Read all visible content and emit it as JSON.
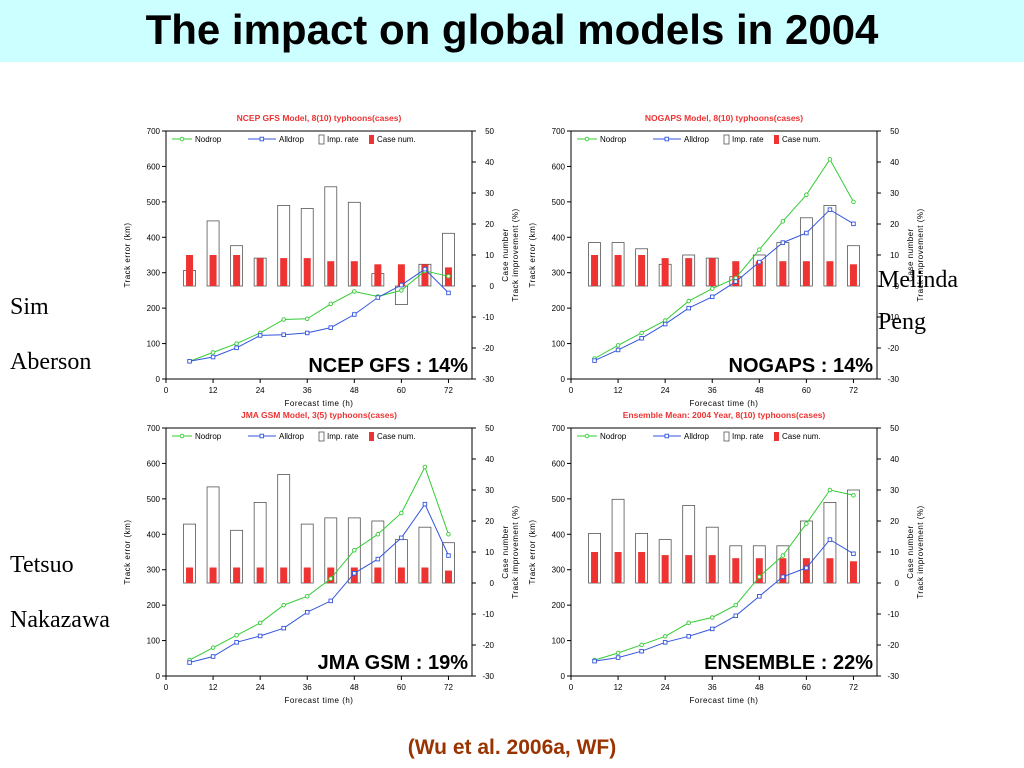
{
  "slide": {
    "title": "The impact on global models in 2004",
    "citation": "(Wu et al. 2006a, WF)",
    "names": {
      "sim": "Sim",
      "aberson": "Aberson",
      "melinda": "Melinda",
      "peng": "Peng",
      "tetsuo": "Tetsuo",
      "nakazawa": "Nakazawa"
    }
  },
  "colors": {
    "title_bg": "#ccffff",
    "nodrop": "#33cc33",
    "alldrop": "#3355dd",
    "case_bar": "#ee3333",
    "panel_title": "#ee3333",
    "citation": "#993300"
  },
  "chart_data": [
    {
      "type": "line",
      "title": "NCEP GFS Model, 8(10) typhoons(cases)",
      "overlay_label": "NCEP GFS : 14%",
      "xlabel": "Forecast time (h)",
      "ylabel": "Track error (km)",
      "y2label": [
        "Case number",
        "Track improvement (%)"
      ],
      "xlim": [
        0,
        78
      ],
      "ylim": [
        0,
        700
      ],
      "y2lim": [
        -30,
        50
      ],
      "x_ticks": [
        0,
        12,
        24,
        36,
        48,
        60,
        72
      ],
      "y_ticks": [
        0,
        100,
        200,
        300,
        400,
        500,
        600,
        700
      ],
      "y2_ticks": [
        -30,
        -20,
        -10,
        0,
        10,
        20,
        30,
        40,
        50
      ],
      "legend": [
        "Nodrop",
        "Alldrop",
        "Imp. rate",
        "Case num."
      ],
      "x": [
        6,
        12,
        18,
        24,
        30,
        36,
        42,
        48,
        54,
        60,
        66,
        72
      ],
      "series": [
        {
          "name": "Nodrop",
          "values": [
            50,
            75,
            100,
            130,
            168,
            170,
            212,
            247,
            233,
            250,
            305,
            290
          ]
        },
        {
          "name": "Alldrop",
          "values": [
            50,
            62,
            88,
            123,
            125,
            130,
            145,
            182,
            230,
            265,
            310,
            243
          ]
        },
        {
          "name": "Imp. rate",
          "values": [
            5,
            21,
            13,
            9,
            26,
            25,
            32,
            27,
            4,
            -6,
            7,
            17
          ]
        },
        {
          "name": "Case num.",
          "values": [
            10,
            10,
            10,
            9,
            9,
            9,
            8,
            8,
            7,
            7,
            7,
            6
          ]
        }
      ]
    },
    {
      "type": "line",
      "title": "NOGAPS Model, 8(10) typhoons(cases)",
      "overlay_label": "NOGAPS : 14%",
      "xlabel": "Forecast time (h)",
      "ylabel": "Track error (km)",
      "y2label": [
        "Case number",
        "Track improvement (%)"
      ],
      "xlim": [
        0,
        78
      ],
      "ylim": [
        0,
        700
      ],
      "y2lim": [
        -30,
        50
      ],
      "x_ticks": [
        0,
        12,
        24,
        36,
        48,
        60,
        72
      ],
      "y_ticks": [
        0,
        100,
        200,
        300,
        400,
        500,
        600,
        700
      ],
      "y2_ticks": [
        -30,
        -20,
        -10,
        0,
        10,
        20,
        30,
        40,
        50
      ],
      "legend": [
        "Nodrop",
        "Alldrop",
        "Imp. rate",
        "Case num."
      ],
      "x": [
        6,
        12,
        18,
        24,
        30,
        36,
        42,
        48,
        54,
        60,
        66,
        72
      ],
      "series": [
        {
          "name": "Nodrop",
          "values": [
            58,
            95,
            130,
            165,
            220,
            255,
            285,
            365,
            445,
            520,
            620,
            500
          ]
        },
        {
          "name": "Alldrop",
          "values": [
            52,
            82,
            115,
            155,
            200,
            232,
            275,
            330,
            385,
            412,
            478,
            438
          ]
        },
        {
          "name": "Imp. rate",
          "values": [
            14,
            14,
            12,
            7,
            10,
            9,
            3,
            10,
            14,
            22,
            26,
            13
          ]
        },
        {
          "name": "Case num.",
          "values": [
            10,
            10,
            10,
            9,
            9,
            9,
            8,
            8,
            8,
            8,
            8,
            7
          ]
        }
      ]
    },
    {
      "type": "line",
      "title": "JMA GSM Model, 3(5) typhoons(cases)",
      "overlay_label": "JMA GSM : 19%",
      "xlabel": "Forecast time (h)",
      "ylabel": "Track error (km)",
      "y2label": [
        "Case number",
        "Track improvement (%)"
      ],
      "xlim": [
        0,
        78
      ],
      "ylim": [
        0,
        700
      ],
      "y2lim": [
        -30,
        50
      ],
      "x_ticks": [
        0,
        12,
        24,
        36,
        48,
        60,
        72
      ],
      "y_ticks": [
        0,
        100,
        200,
        300,
        400,
        500,
        600,
        700
      ],
      "y2_ticks": [
        -30,
        -20,
        -10,
        0,
        10,
        20,
        30,
        40,
        50
      ],
      "legend": [
        "Nodrop",
        "Alldrop",
        "Imp. rate",
        "Case num."
      ],
      "x": [
        6,
        12,
        18,
        24,
        30,
        36,
        42,
        48,
        54,
        60,
        66,
        72
      ],
      "series": [
        {
          "name": "Nodrop",
          "values": [
            45,
            80,
            115,
            150,
            200,
            225,
            275,
            355,
            400,
            460,
            590,
            400
          ]
        },
        {
          "name": "Alldrop",
          "values": [
            38,
            55,
            95,
            113,
            135,
            180,
            212,
            290,
            330,
            390,
            485,
            340
          ]
        },
        {
          "name": "Imp. rate",
          "values": [
            19,
            31,
            17,
            26,
            35,
            19,
            21,
            21,
            20,
            14,
            18,
            13
          ]
        },
        {
          "name": "Case num.",
          "values": [
            5,
            5,
            5,
            5,
            5,
            5,
            5,
            5,
            5,
            5,
            5,
            4
          ]
        }
      ]
    },
    {
      "type": "line",
      "title": "Ensemble Mean: 2004 Year, 8(10) typhoons(cases)",
      "overlay_label": "ENSEMBLE : 22%",
      "xlabel": "Forecast time (h)",
      "ylabel": "Track error (km)",
      "y2label": [
        "Case number",
        "Track improvement (%)"
      ],
      "xlim": [
        0,
        78
      ],
      "ylim": [
        0,
        700
      ],
      "y2lim": [
        -30,
        50
      ],
      "x_ticks": [
        0,
        12,
        24,
        36,
        48,
        60,
        72
      ],
      "y_ticks": [
        0,
        100,
        200,
        300,
        400,
        500,
        600,
        700
      ],
      "y2_ticks": [
        -30,
        -20,
        -10,
        0,
        10,
        20,
        30,
        40,
        50
      ],
      "legend": [
        "Nodrop",
        "Alldrop",
        "Imp. rate",
        "Case num."
      ],
      "x": [
        6,
        12,
        18,
        24,
        30,
        36,
        42,
        48,
        54,
        60,
        66,
        72
      ],
      "series": [
        {
          "name": "Nodrop",
          "values": [
            45,
            65,
            88,
            112,
            150,
            165,
            200,
            280,
            340,
            430,
            525,
            510
          ]
        },
        {
          "name": "Alldrop",
          "values": [
            42,
            52,
            70,
            95,
            112,
            133,
            170,
            225,
            280,
            305,
            385,
            345
          ]
        },
        {
          "name": "Imp. rate",
          "values": [
            16,
            27,
            16,
            14,
            25,
            18,
            12,
            12,
            12,
            20,
            26,
            30
          ]
        },
        {
          "name": "Case num.",
          "values": [
            10,
            10,
            10,
            9,
            9,
            9,
            8,
            8,
            8,
            8,
            8,
            7
          ]
        }
      ]
    }
  ]
}
